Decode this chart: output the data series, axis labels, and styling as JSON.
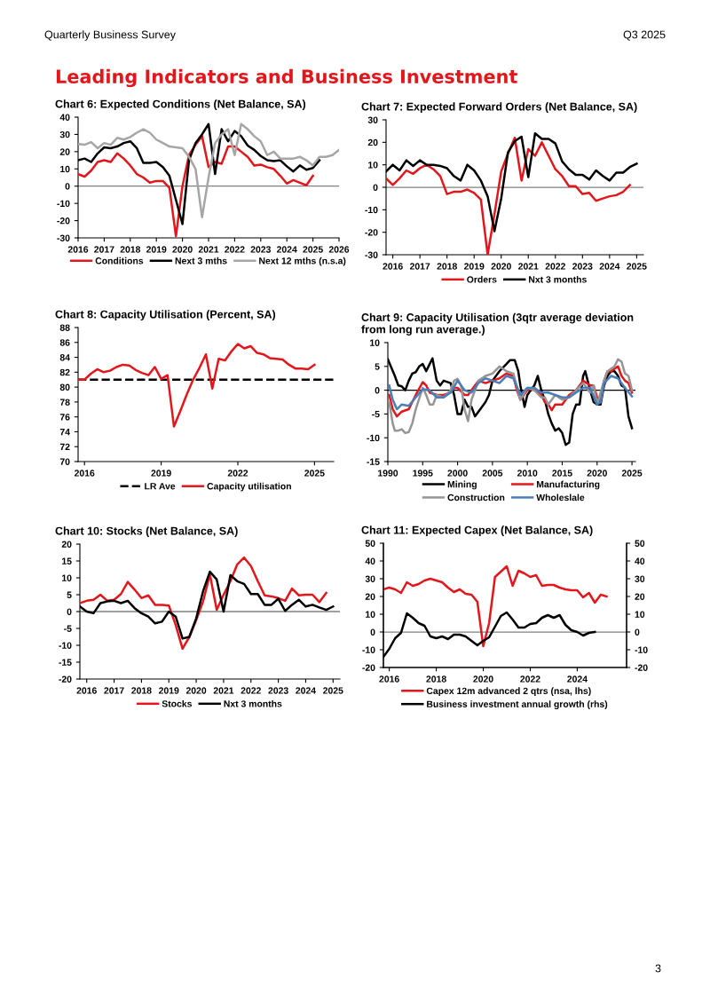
{
  "chart_data": [
    {
      "type": "other",
      "title": "Leading Indicators and Business Investment",
      "annotations": [
        "Quarterly Business Survey",
        "Q3 2025",
        "3"
      ]
    },
    {
      "type": "line",
      "title": "Chart 6: Expected Conditions (Net Balance, SA)",
      "legend": "bottom",
      "x": [
        2016,
        2016.25,
        2016.5,
        2016.75,
        2017,
        2017.25,
        2017.5,
        2017.75,
        2018,
        2018.25,
        2018.5,
        2018.75,
        2019,
        2019.25,
        2019.5,
        2019.75,
        2020,
        2020.25,
        2020.5,
        2020.75,
        2021,
        2021.25,
        2021.5,
        2021.75,
        2022,
        2022.25,
        2022.5,
        2022.75,
        2023,
        2023.25,
        2023.5,
        2023.75,
        2024,
        2024.25,
        2024.5,
        2024.75,
        2025,
        2025.25,
        2025.5,
        2025.75,
        2026
      ],
      "xlim": [
        2016,
        2026
      ],
      "xticks": [
        2016,
        2017,
        2018,
        2019,
        2020,
        2021,
        2022,
        2023,
        2024,
        2025,
        2026
      ],
      "ylim": [
        -30,
        40
      ],
      "yticks": [
        -30,
        -20,
        -10,
        0,
        10,
        20,
        30,
        40
      ],
      "ref_lines": [
        {
          "axis": "y",
          "value": 0,
          "color": "#808080"
        }
      ],
      "series": [
        {
          "name": "Conditions",
          "color": "#e3171b",
          "values": [
            7,
            5.5,
            9,
            14,
            15,
            14,
            19,
            16,
            12,
            7,
            5,
            2,
            3,
            3,
            -1,
            -29,
            0,
            18,
            24,
            29,
            11,
            14,
            13,
            23,
            23,
            20,
            17,
            12,
            12.5,
            11,
            10,
            6,
            1.5,
            3.5,
            2,
            0.5,
            6,
            null,
            null,
            null,
            null
          ]
        },
        {
          "name": "Next 3 mths",
          "color": "#000000",
          "values": [
            15,
            16,
            14,
            19,
            22.5,
            22,
            23,
            25,
            26,
            22,
            13.5,
            13.5,
            14,
            11,
            6,
            -8,
            -22,
            15,
            25,
            30,
            36,
            7,
            33,
            26,
            32,
            29,
            23.5,
            21,
            17.5,
            15,
            14.5,
            15,
            11.5,
            8.5,
            12,
            9.5,
            10.5,
            15,
            null,
            null,
            null
          ]
        },
        {
          "name": "Next 12 mths (n.s.a)",
          "color": "#a6a6a6",
          "values": [
            24.5,
            24,
            25.5,
            22,
            25,
            24,
            28,
            27,
            28.5,
            31,
            33,
            31,
            27,
            25,
            23,
            22.5,
            22,
            17,
            10,
            -18,
            5,
            25,
            30,
            33,
            18,
            36,
            33,
            29,
            26,
            18,
            20,
            16,
            16,
            16,
            17,
            15,
            12,
            17,
            17,
            18,
            21
          ]
        }
      ]
    },
    {
      "type": "line",
      "title": "Chart 7: Expected Forward Orders (Net Balance, SA)",
      "legend": "bottom",
      "x": [
        2015.75,
        2016,
        2016.25,
        2016.5,
        2016.75,
        2017,
        2017.25,
        2017.5,
        2017.75,
        2018,
        2018.25,
        2018.5,
        2018.75,
        2019,
        2019.25,
        2019.5,
        2019.75,
        2020,
        2020.25,
        2020.5,
        2020.75,
        2021,
        2021.25,
        2021.5,
        2021.75,
        2022,
        2022.25,
        2022.5,
        2022.75,
        2023,
        2023.25,
        2023.5,
        2023.75,
        2024,
        2024.25,
        2024.5,
        2024.75,
        2025
      ],
      "xlim": [
        2015.75,
        2025.25
      ],
      "xticks": [
        2016,
        2017,
        2018,
        2019,
        2020,
        2021,
        2022,
        2023,
        2024,
        2025
      ],
      "ylim": [
        -30,
        30
      ],
      "yticks": [
        -30,
        -20,
        -10,
        0,
        10,
        20,
        30
      ],
      "ref_lines": [
        {
          "axis": "y",
          "value": 0,
          "color": "#808080"
        }
      ],
      "series": [
        {
          "name": "Orders",
          "color": "#e3171b",
          "values": [
            4,
            1,
            4,
            7.5,
            6,
            8.5,
            10,
            8,
            5,
            -3,
            -2,
            -2,
            -1,
            -2.5,
            -5.5,
            -30,
            -12,
            7,
            15,
            22,
            3,
            17,
            14,
            20,
            14,
            8,
            5,
            0.5,
            0.5,
            -3,
            -2.5,
            -6,
            -5,
            -4,
            -3.5,
            -2,
            1,
            null
          ]
        },
        {
          "name": "Nxt 3 months",
          "color": "#000000",
          "values": [
            7,
            10,
            7.5,
            12,
            9.5,
            12,
            10,
            10,
            9.5,
            8.5,
            5,
            3,
            10,
            7.5,
            3,
            -4,
            -19.5,
            -5,
            15.5,
            20.5,
            22.5,
            4.5,
            24,
            21.5,
            21.5,
            19.5,
            11.5,
            8,
            5.5,
            5.5,
            3.5,
            7.5,
            5,
            3,
            6.5,
            6.5,
            9,
            10.5
          ]
        }
      ]
    },
    {
      "type": "line",
      "title": "Chart 8: Capacity Utilisation (Percent, SA)",
      "legend": "bottom",
      "x": [
        2015.75,
        2016,
        2016.25,
        2016.5,
        2016.75,
        2017,
        2017.25,
        2017.5,
        2017.75,
        2018,
        2018.25,
        2018.5,
        2018.75,
        2019,
        2019.25,
        2019.5,
        2019.75,
        2020,
        2020.25,
        2020.5,
        2020.75,
        2021,
        2021.25,
        2021.5,
        2021.75,
        2022,
        2022.25,
        2022.5,
        2022.75,
        2023,
        2023.25,
        2023.5,
        2023.75,
        2024,
        2024.25,
        2024.5,
        2024.75,
        2025
      ],
      "xlim": [
        2015.75,
        2025.75
      ],
      "xticks": [
        2016,
        2019,
        2022,
        2025
      ],
      "ylim": [
        70,
        88
      ],
      "yticks": [
        70,
        72,
        74,
        76,
        78,
        80,
        82,
        84,
        86,
        88
      ],
      "ref_lines": [
        {
          "axis": "y",
          "value": 81,
          "label": "LR Ave",
          "color": "#000000",
          "line_style": "dashed"
        }
      ],
      "series": [
        {
          "name": "Capacity utilisation",
          "color": "#e3171b",
          "values": [
            81,
            81,
            81.8,
            82.4,
            82,
            82.2,
            82.7,
            83,
            82.9,
            82.3,
            81.9,
            81.6,
            82.7,
            81.1,
            81.6,
            74.7,
            76.8,
            79,
            81,
            82.6,
            84.4,
            79.8,
            83.8,
            83.6,
            84.8,
            85.8,
            85.2,
            85.5,
            84.6,
            84.4,
            83.9,
            83.8,
            83.7,
            83,
            82.5,
            82.5,
            82.4,
            83
          ]
        }
      ]
    },
    {
      "type": "line",
      "title": "Chart 9: Capacity Utilisation (3qtr average deviation from long run average.)",
      "legend": "bottom",
      "xlim": [
        1990,
        2025.5
      ],
      "xticks": [
        1990,
        1995,
        2000,
        2005,
        2010,
        2015,
        2020,
        2025
      ],
      "ylim": [
        -15,
        10
      ],
      "yticks": [
        -15,
        -10,
        -5,
        0,
        5,
        10
      ],
      "ref_lines": [
        {
          "axis": "y",
          "value": 0,
          "color": "#000000"
        }
      ],
      "series": [
        {
          "name": "Mining",
          "color": "#000000",
          "x": [
            1990,
            1991,
            1991.5,
            1992,
            1992.5,
            1993,
            1993.5,
            1994,
            1994.5,
            1995,
            1995.5,
            1996,
            1996.4,
            1997,
            1997.5,
            1998,
            1999,
            1999.5,
            2000,
            2000.5,
            2001,
            2001.5,
            2002,
            2002.5,
            2003,
            2004,
            2004.5,
            2005,
            2006,
            2007,
            2007.5,
            2008.2,
            2008.7,
            2009,
            2009.6,
            2010,
            2011,
            2011.5,
            2012,
            2012.5,
            2013,
            2013.5,
            2014,
            2014.5,
            2015,
            2015.5,
            2016,
            2016.5,
            2017,
            2017.5,
            2018,
            2018.3,
            2019,
            2019.5,
            2020,
            2020.5,
            2021,
            2021.5,
            2022,
            2022.5,
            2023,
            2023.5,
            2024,
            2024.5,
            2025
          ],
          "values": [
            6.5,
            3,
            1,
            0.8,
            0,
            2,
            3.5,
            3.8,
            5,
            5.5,
            4,
            5.5,
            6.7,
            2,
            1,
            2,
            1.5,
            -1,
            -5,
            -5,
            -2,
            -3.5,
            -3.5,
            -5.5,
            -4.5,
            -2.5,
            -1,
            2,
            4,
            5.5,
            6.3,
            6.3,
            4,
            1,
            -3.5,
            -1,
            1,
            3,
            0,
            -2,
            -5,
            -7,
            -8.5,
            -8,
            -9,
            -11.5,
            -11,
            -5,
            -3,
            -3,
            3,
            4,
            0,
            -2.5,
            -3,
            -3,
            1,
            3,
            4,
            4,
            3,
            1,
            0.5,
            -5.5,
            -8
          ]
        },
        {
          "name": "Manufacturing",
          "color": "#e3171b",
          "x": [
            1990.2,
            1990.7,
            1991.3,
            1992,
            1993,
            1994,
            1995,
            1995.5,
            1996,
            1997,
            1998,
            1999,
            1999.5,
            2000,
            2001,
            2001.5,
            2002,
            2003,
            2004,
            2005,
            2006,
            2007,
            2008,
            2008.5,
            2009,
            2010,
            2011,
            2012,
            2012.5,
            2013,
            2013.5,
            2014,
            2015,
            2016,
            2017,
            2018,
            2019,
            2019.5,
            2020,
            2020.5,
            2021,
            2021.5,
            2022,
            2022.5,
            2023,
            2023.5,
            2024,
            2024.5,
            2025
          ],
          "values": [
            -1,
            -4,
            -5.5,
            -4.5,
            -4,
            -1,
            1.7,
            1,
            -0.5,
            -1,
            -1,
            -0.5,
            0.5,
            0.5,
            -1,
            -1,
            0,
            2,
            1.5,
            2,
            2.5,
            3.5,
            3,
            0,
            -2,
            0,
            0.5,
            -1,
            -2.5,
            -3,
            -4.2,
            -3,
            -3,
            -1,
            0,
            2,
            1,
            1,
            -1.5,
            -2.5,
            2,
            4,
            4,
            4.5,
            5,
            3,
            2,
            1.5,
            -0.5
          ]
        },
        {
          "name": "Construction",
          "color": "#959595",
          "x": [
            1990.2,
            1990.7,
            1991,
            1991.5,
            1992,
            1992.5,
            1993,
            1993.5,
            1994,
            1995,
            1995.5,
            1996,
            1996.5,
            1997,
            1998,
            1999,
            1999.5,
            2000,
            2000.5,
            2001,
            2001.5,
            2002,
            2003,
            2004,
            2005,
            2006,
            2007,
            2008,
            2009,
            2010,
            2011,
            2012,
            2012.5,
            2013,
            2014,
            2015,
            2016,
            2017,
            2018,
            2019,
            2019.5,
            2020,
            2021,
            2021.5,
            2022,
            2022.5,
            2023,
            2023.5,
            2024,
            2024.5,
            2025
          ],
          "values": [
            -2.5,
            -7,
            -8.5,
            -8.5,
            -8.2,
            -9,
            -8.8,
            -7,
            -4,
            0.5,
            -1,
            -3,
            -3,
            -1,
            -1.5,
            0,
            2,
            2.4,
            1,
            -4,
            -6.5,
            -2,
            2,
            3,
            3.5,
            5,
            4,
            3.5,
            -2,
            0.5,
            0,
            -1.5,
            -1.5,
            -3,
            -1,
            -2,
            -1.5,
            0,
            1.5,
            -0.5,
            1,
            -3,
            2,
            4,
            4.5,
            5,
            6.5,
            6,
            3.5,
            3,
            0
          ]
        },
        {
          "name": "Wholeslale",
          "color": "#4a7ebb",
          "x": [
            1990.2,
            1990.7,
            1991.3,
            1992,
            1993,
            1994,
            1995,
            1996,
            1997,
            1998,
            1999,
            2000,
            2001,
            2002,
            2003,
            2004,
            2005,
            2006,
            2007,
            2008,
            2009,
            2010,
            2011,
            2012,
            2013,
            2014,
            2015,
            2016,
            2017,
            2018,
            2019,
            2020,
            2020.5,
            2021,
            2022,
            2023,
            2024,
            2025
          ],
          "values": [
            1,
            -2,
            -4,
            -3,
            -3.3,
            -1.5,
            0.2,
            0,
            -1.5,
            -1.5,
            -0.5,
            2,
            0,
            -0.5,
            1.5,
            2.5,
            2,
            1.5,
            3,
            2.5,
            -1,
            0.5,
            0.5,
            -0.5,
            -0.5,
            -1,
            -1.5,
            -1.5,
            -0.5,
            0.5,
            0.5,
            -3,
            -2.5,
            1.5,
            3,
            2.5,
            0.5,
            -1.3
          ]
        }
      ]
    },
    {
      "type": "line",
      "title": "Chart 10: Stocks (Net Balance, SA)",
      "legend": "bottom",
      "x": [
        2015.75,
        2016,
        2016.25,
        2016.5,
        2016.75,
        2017,
        2017.25,
        2017.5,
        2017.75,
        2018,
        2018.25,
        2018.5,
        2018.75,
        2019,
        2019.25,
        2019.5,
        2019.75,
        2020,
        2020.25,
        2020.5,
        2020.75,
        2021,
        2021.25,
        2021.5,
        2021.75,
        2022,
        2022.25,
        2022.5,
        2022.75,
        2023,
        2023.25,
        2023.5,
        2023.75,
        2024,
        2024.25,
        2024.5,
        2024.75,
        2025
      ],
      "xlim": [
        2015.75,
        2025.25
      ],
      "xticks": [
        2016,
        2017,
        2018,
        2019,
        2020,
        2021,
        2022,
        2023,
        2024,
        2025
      ],
      "ylim": [
        -20,
        20
      ],
      "yticks": [
        -20,
        -15,
        -10,
        -5,
        0,
        5,
        10,
        15,
        20
      ],
      "ref_lines": [
        {
          "axis": "y",
          "value": 0,
          "color": "#808080"
        }
      ],
      "series": [
        {
          "name": "Stocks",
          "color": "#e3171b",
          "values": [
            2.5,
            3.2,
            3.5,
            5,
            3.2,
            3.5,
            5.2,
            8.8,
            6.5,
            4,
            4.8,
            2,
            2,
            1.8,
            -4,
            -11,
            -7.5,
            -2.5,
            3,
            11,
            0.5,
            5,
            9,
            14,
            16,
            13.5,
            9,
            4.8,
            4.5,
            4,
            3.2,
            6.8,
            4.8,
            5,
            5,
            2.8,
            5.5,
            null
          ]
        },
        {
          "name": "Nxt 3 months",
          "color": "#000000",
          "values": [
            1.5,
            0,
            -0.5,
            2.5,
            3,
            3.2,
            2.5,
            3.2,
            1,
            -0.5,
            -1.5,
            -3.5,
            -3,
            0,
            -1.5,
            -8,
            -7.5,
            -2,
            6,
            11.8,
            9.5,
            0,
            10.8,
            9,
            8.2,
            5.2,
            5.2,
            2,
            2,
            3.8,
            0.2,
            2,
            3.5,
            1.5,
            2,
            1.2,
            0.5,
            1.5
          ]
        }
      ]
    },
    {
      "type": "line",
      "title": "Chart 11: Expected Capex (Net Balance, SA)",
      "legend": "bottom",
      "x": [
        2015.75,
        2016,
        2016.25,
        2016.5,
        2016.75,
        2017,
        2017.25,
        2017.5,
        2017.75,
        2018,
        2018.25,
        2018.5,
        2018.75,
        2019,
        2019.25,
        2019.5,
        2019.75,
        2020,
        2020.25,
        2020.5,
        2020.75,
        2021,
        2021.25,
        2021.5,
        2021.75,
        2022,
        2022.25,
        2022.5,
        2022.75,
        2023,
        2023.25,
        2023.5,
        2023.75,
        2024,
        2024.25,
        2024.5,
        2024.75,
        2025,
        2025.25
      ],
      "xlim": [
        2015.75,
        2026.1
      ],
      "xticks": [
        2016,
        2018,
        2020,
        2022,
        2024
      ],
      "ylim": [
        -20,
        50
      ],
      "yticks": [
        -20,
        -10,
        0,
        10,
        20,
        30,
        40,
        50
      ],
      "y2lim": [
        -20,
        50
      ],
      "y2ticks": [
        -20,
        -10,
        0,
        10,
        20,
        30,
        40,
        50
      ],
      "ref_lines": [
        {
          "axis": "y",
          "value": 0,
          "color": "#808080"
        }
      ],
      "series": [
        {
          "name": "Capex 12m advanced 2 qtrs (nsa, lhs)",
          "color": "#e3171b",
          "values": [
            24,
            25,
            24,
            22,
            28,
            26,
            27,
            29,
            30,
            29,
            28,
            25,
            22.5,
            24,
            21.5,
            21,
            17,
            -8,
            5,
            31,
            34,
            37,
            26,
            34.5,
            33,
            31,
            32,
            26,
            26.5,
            26.5,
            25,
            24,
            23.5,
            23.5,
            19.5,
            22,
            16.5,
            21,
            20
          ]
        },
        {
          "name": "Business investment annual growth (rhs)",
          "color": "#000000",
          "axis": "y2",
          "values": [
            -14,
            -9.5,
            -3.5,
            -0.5,
            10.5,
            8,
            5,
            3.5,
            -2.5,
            -3.5,
            -2.5,
            -4,
            -1.5,
            -1.5,
            -2.5,
            -5,
            -7.5,
            -5,
            -3,
            3,
            9,
            11,
            7,
            2.5,
            2.5,
            4.5,
            5,
            8,
            9.5,
            8,
            9.5,
            4,
            1,
            0,
            -2,
            -0.5,
            0,
            null,
            null
          ]
        }
      ]
    }
  ]
}
